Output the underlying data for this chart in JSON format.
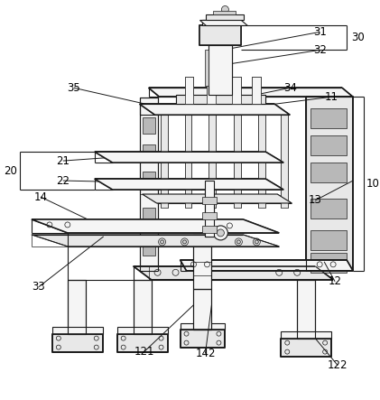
{
  "bg": "#ffffff",
  "lc": "#1a1a1a",
  "fc_light": "#f5f5f5",
  "fc_mid": "#e8e8e8",
  "fc_dark": "#d0d0d0",
  "fc_darkest": "#b8b8b8",
  "lw_thick": 1.2,
  "lw_med": 0.8,
  "lw_thin": 0.5,
  "labels": [
    "10",
    "11",
    "12",
    "13",
    "14",
    "20",
    "21",
    "22",
    "30",
    "31",
    "32",
    "33",
    "34",
    "35",
    "121",
    "122",
    "142"
  ]
}
